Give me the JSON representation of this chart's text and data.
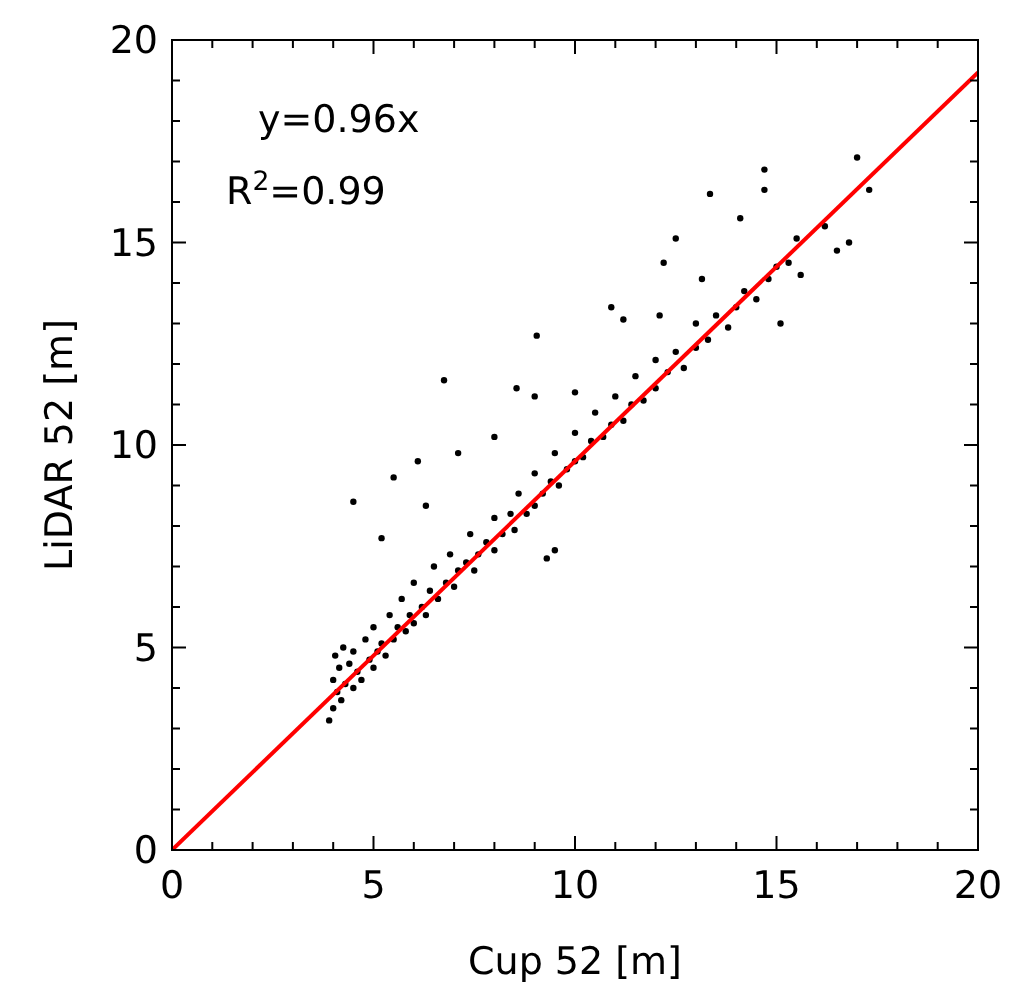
{
  "chart_data": {
    "type": "scatter",
    "xlabel": "Cup 52 [m]",
    "ylabel": "LiDAR 52 [m]",
    "annotations": [
      "y=0.96x",
      "R$^{2}$=0.99"
    ],
    "xlim": [
      0,
      20
    ],
    "ylim": [
      0,
      20
    ],
    "xticks": [
      0,
      {
        "value": 1,
        "label": null
      },
      {
        "value": 2,
        "label": null
      },
      {
        "value": 3,
        "label": null
      },
      {
        "value": 4,
        "label": null
      },
      5,
      {
        "value": 6,
        "label": null
      },
      {
        "value": 7,
        "label": null
      },
      {
        "value": 8,
        "label": null
      },
      {
        "value": 9,
        "label": null
      },
      10,
      {
        "value": 11,
        "label": null
      },
      {
        "value": 12,
        "label": null
      },
      {
        "value": 13,
        "label": null
      },
      {
        "value": 14,
        "label": null
      },
      15,
      {
        "value": 16,
        "label": null
      },
      {
        "value": 17,
        "label": null
      },
      {
        "value": 18,
        "label": null
      },
      {
        "value": 19,
        "label": null
      },
      20
    ],
    "yticks": [
      0,
      {
        "value": 1,
        "label": null
      },
      {
        "value": 2,
        "label": null
      },
      {
        "value": 3,
        "label": null
      },
      {
        "value": 4,
        "label": null
      },
      5,
      {
        "value": 6,
        "label": null
      },
      {
        "value": 7,
        "label": null
      },
      {
        "value": 8,
        "label": null
      },
      {
        "value": 9,
        "label": null
      },
      10,
      {
        "value": 11,
        "label": null
      },
      {
        "value": 12,
        "label": null
      },
      {
        "value": 13,
        "label": null
      },
      {
        "value": 14,
        "label": null
      },
      15,
      {
        "value": 16,
        "label": null
      },
      {
        "value": 17,
        "label": null
      },
      {
        "value": 18,
        "label": null
      },
      {
        "value": 19,
        "label": null
      },
      20
    ],
    "grid": false,
    "marker": "circle",
    "series": [
      {
        "color": "#000000",
        "x": [
          4.0,
          4.0,
          4.05,
          4.1,
          4.15,
          4.2,
          4.25,
          4.3,
          4.4,
          4.5,
          4.5,
          4.6,
          4.7,
          4.8,
          4.9,
          5.0,
          5.0,
          5.1,
          5.2,
          5.3,
          5.4,
          5.5,
          5.6,
          5.7,
          5.8,
          5.9,
          6.0,
          6.0,
          6.2,
          6.3,
          6.4,
          6.5,
          6.6,
          6.8,
          6.9,
          7.0,
          7.1,
          7.3,
          7.4,
          7.5,
          7.6,
          7.8,
          8.0,
          8.0,
          8.2,
          8.4,
          8.5,
          8.6,
          8.8,
          9.0,
          9.0,
          9.2,
          9.4,
          9.5,
          9.6,
          9.8,
          10.0,
          10.0,
          10.2,
          10.4,
          10.5,
          10.7,
          10.9,
          11.0,
          11.2,
          11.4,
          11.5,
          11.7,
          12.0,
          12.0,
          12.3,
          12.5,
          12.7,
          13.0,
          13.0,
          13.3,
          13.5,
          13.8,
          14.0,
          14.2,
          14.5,
          14.8,
          15.0,
          15.3,
          15.6,
          6.75,
          9.05,
          14.7,
          13.35,
          14.7,
          17.0,
          17.3,
          16.8,
          16.5,
          15.1,
          12.5,
          12.2,
          13.15,
          10.9,
          11.2,
          8.55,
          8.0,
          6.1,
          7.1,
          5.5,
          4.5,
          5.2,
          6.3,
          9.3,
          9.5,
          3.9,
          9.0,
          10.0,
          12.1,
          14.1,
          15.5,
          16.2
        ],
        "values": [
          3.5,
          4.2,
          4.8,
          3.9,
          4.5,
          3.7,
          5.0,
          4.1,
          4.6,
          4.0,
          4.9,
          4.4,
          4.2,
          5.2,
          4.7,
          4.5,
          5.5,
          4.9,
          5.1,
          4.8,
          5.8,
          5.2,
          5.5,
          6.2,
          5.4,
          5.8,
          5.6,
          6.6,
          6.0,
          5.8,
          6.4,
          7.0,
          6.2,
          6.6,
          7.3,
          6.5,
          6.9,
          7.1,
          7.8,
          6.9,
          7.3,
          7.6,
          7.4,
          8.2,
          7.8,
          8.3,
          7.9,
          8.8,
          8.3,
          8.5,
          9.3,
          8.8,
          9.1,
          9.8,
          9.0,
          9.4,
          9.6,
          10.3,
          9.7,
          10.1,
          10.8,
          10.2,
          10.5,
          11.2,
          10.6,
          11.0,
          11.7,
          11.1,
          11.4,
          12.1,
          11.8,
          12.3,
          11.9,
          12.4,
          13.0,
          12.6,
          13.2,
          12.9,
          13.4,
          13.8,
          13.6,
          14.1,
          14.4,
          14.5,
          14.2,
          11.6,
          12.7,
          16.8,
          16.2,
          16.3,
          17.1,
          16.3,
          15.0,
          14.8,
          13.0,
          15.1,
          14.5,
          14.1,
          13.4,
          13.1,
          11.4,
          10.2,
          9.6,
          9.8,
          9.2,
          8.6,
          7.7,
          8.5,
          7.2,
          7.4,
          3.2,
          11.2,
          11.3,
          13.2,
          15.6,
          15.1,
          15.4
        ]
      },
      {
        "type": "line",
        "marker": "none",
        "color": "#ff0000",
        "x": [
          0,
          20
        ],
        "values": [
          0,
          19.2
        ]
      }
    ]
  }
}
